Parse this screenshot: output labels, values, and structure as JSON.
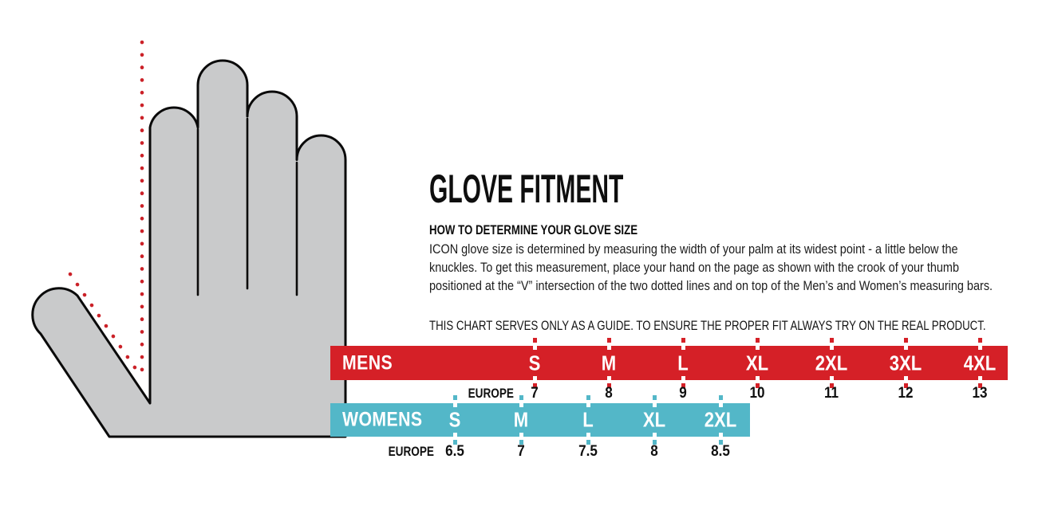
{
  "page": {
    "background": "#ffffff"
  },
  "illustration": {
    "hand_fill": "#c9cacb",
    "outline_color": "#0a0a0a",
    "dotted_line_color": "#cb2128"
  },
  "content": {
    "title": "GLOVE FITMENT",
    "heading": "HOW TO DETERMINE YOUR GLOVE SIZE",
    "body_lines": [
      "ICON glove size is determined by measuring the width of your palm at its widest point - a little below the",
      "knuckles. To get this measurement, place your hand on the page as shown with the crook of your thumb",
      "positioned at the “V” intersection of the two dotted lines and on top of the Men’s and Women’s measuring bars."
    ],
    "disclaimer": "THIS CHART SERVES ONLY AS A GUIDE. TO ENSURE THE PROPER FIT ALWAYS TRY ON THE REAL PRODUCT."
  },
  "mens": {
    "label": "MENS",
    "color": "#d52027",
    "sizes": [
      "S",
      "M",
      "L",
      "XL",
      "2XL",
      "3XL",
      "4XL"
    ],
    "europe_label": "EUROPE",
    "europe_values": [
      "7",
      "8",
      "9",
      "10",
      "11",
      "12",
      "13"
    ]
  },
  "womens": {
    "label": "WOMENS",
    "color": "#53b7c8",
    "sizes": [
      "S",
      "M",
      "L",
      "XL",
      "2XL"
    ],
    "europe_label": "EUROPE",
    "europe_values": [
      "6.5",
      "7",
      "7.5",
      "8",
      "8.5"
    ]
  }
}
